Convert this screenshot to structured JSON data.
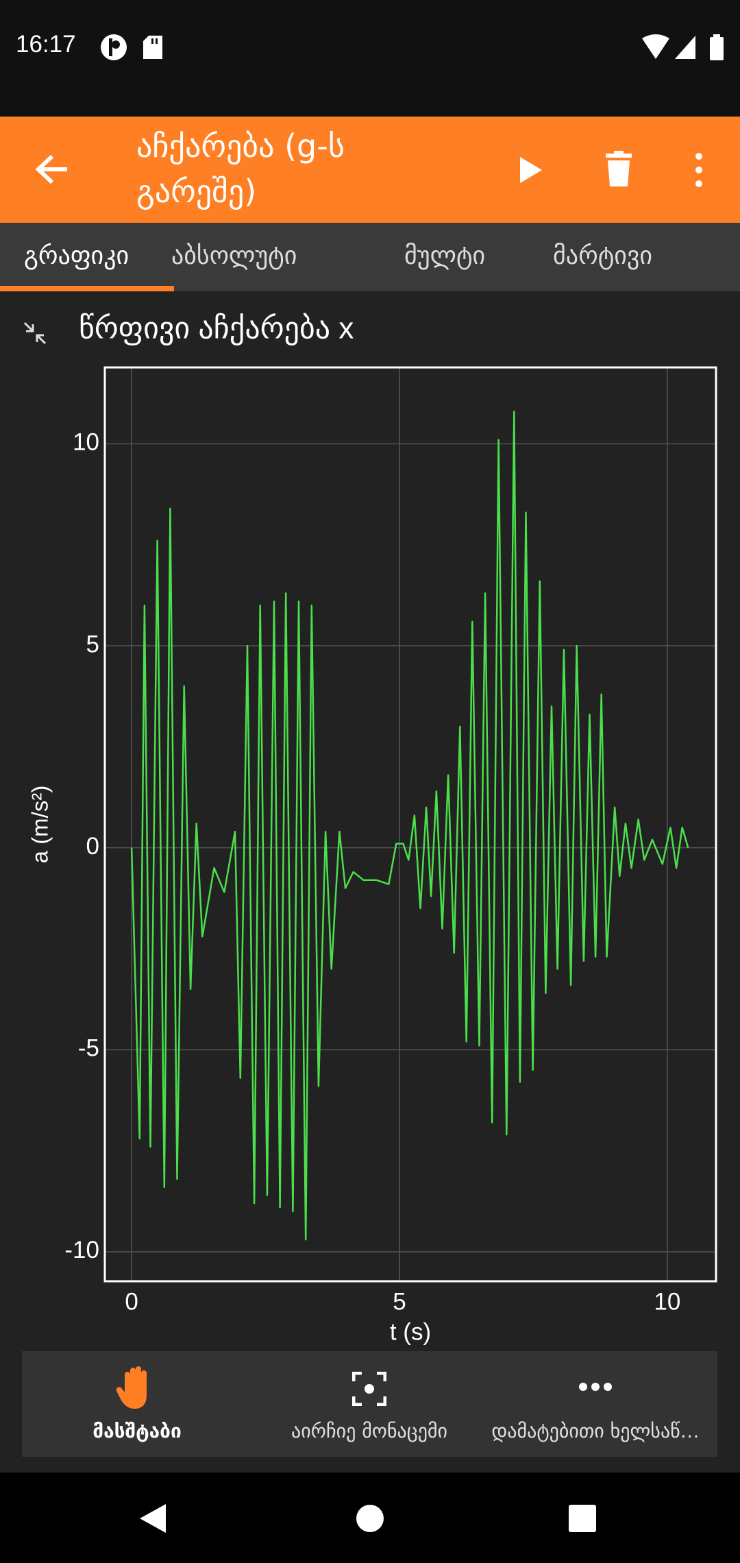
{
  "status_bar": {
    "time": "16:17"
  },
  "toolbar": {
    "title": "აჩქარება (g-ს გარეშე)"
  },
  "tabs": [
    "გრაფიკი",
    "აბსოლუტი",
    "მულტი",
    "მარტივი"
  ],
  "chart_data": {
    "type": "line",
    "title": "წრფივი აჩქარება x",
    "xlabel": "t (s)",
    "ylabel": "a (m/s²)",
    "xlim": [
      -0.5,
      10.91
    ],
    "ylim": [
      -10.73,
      11.89
    ],
    "xticks": [
      0,
      5,
      10
    ],
    "yticks": [
      -10,
      -5,
      0,
      5,
      10
    ],
    "grid": true,
    "color": "#4be04b",
    "x": [
      0,
      0.15,
      0.24,
      0.35,
      0.48,
      0.61,
      0.72,
      0.85,
      0.98,
      1.1,
      1.21,
      1.32,
      1.54,
      1.73,
      1.93,
      2.03,
      2.16,
      2.29,
      2.4,
      2.53,
      2.66,
      2.77,
      2.88,
      3.01,
      3.12,
      3.25,
      3.36,
      3.49,
      3.62,
      3.73,
      3.88,
      3.99,
      4.14,
      4.33,
      4.57,
      4.8,
      4.94,
      5.07,
      5.17,
      5.28,
      5.39,
      5.5,
      5.59,
      5.69,
      5.8,
      5.91,
      6.02,
      6.13,
      6.25,
      6.36,
      6.49,
      6.6,
      6.73,
      6.85,
      7.0,
      7.14,
      7.25,
      7.36,
      7.49,
      7.62,
      7.73,
      7.84,
      7.95,
      8.07,
      8.2,
      8.31,
      8.44,
      8.55,
      8.66,
      8.77,
      8.87,
      9.02,
      9.11,
      9.22,
      9.33,
      9.46,
      9.57,
      9.72,
      9.91,
      10.06,
      10.17,
      10.28,
      10.39
    ],
    "values": [
      0,
      -7.2,
      6,
      -7.4,
      7.6,
      -8.4,
      8.4,
      -8.2,
      4,
      -3.5,
      0.6,
      -2.2,
      -0.5,
      -1.1,
      0.4,
      -5.7,
      5,
      -8.8,
      6,
      -8.6,
      6.1,
      -8.9,
      6.3,
      -9,
      6.1,
      -9.7,
      6,
      -5.9,
      0.4,
      -3,
      0.4,
      -1,
      -0.6,
      -0.8,
      -0.8,
      -0.9,
      0.1,
      0.1,
      -0.3,
      0.8,
      -1.5,
      1,
      -1.2,
      1.4,
      -2,
      1.8,
      -2.6,
      3,
      -4.8,
      5.6,
      -4.9,
      6.3,
      -6.8,
      10.1,
      -7.1,
      10.8,
      -5.8,
      8.3,
      -5.5,
      6.6,
      -3.6,
      3.5,
      -3,
      4.9,
      -3.4,
      5,
      -2.8,
      3.3,
      -2.7,
      3.8,
      -2.7,
      1,
      -0.7,
      0.6,
      -0.5,
      0.7,
      -0.3,
      0.2,
      -0.4,
      0.5,
      -0.5,
      0.5,
      0
    ]
  },
  "bottom_bar": [
    "მასშტაბი",
    "აირჩიე მონაცემი",
    "დამატებითი ხელსაწ…"
  ]
}
